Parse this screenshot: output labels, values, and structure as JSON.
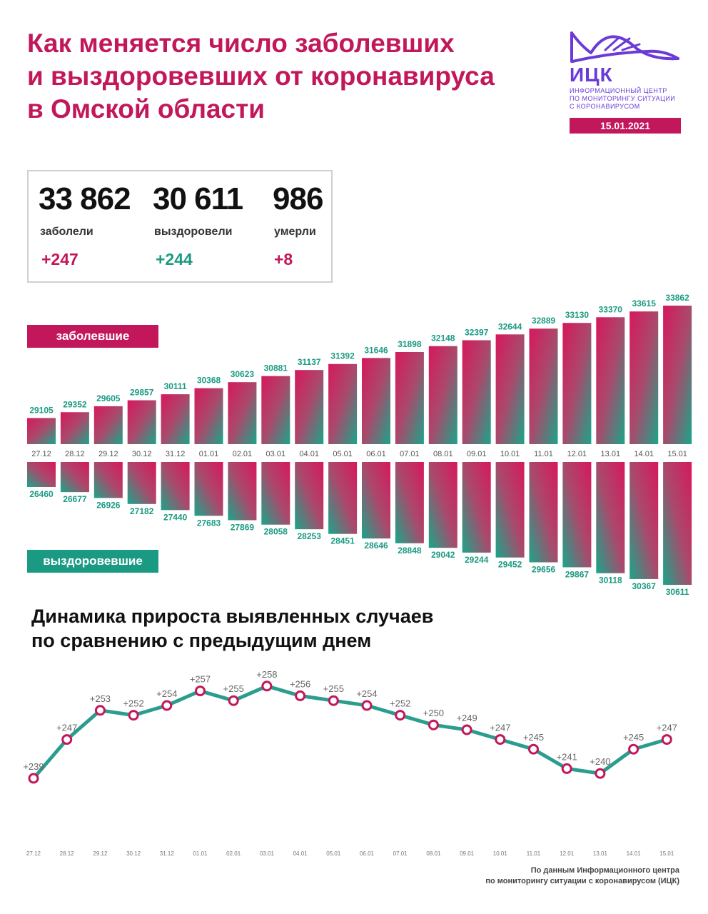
{
  "title_lines": [
    "Как меняется число заболевших",
    "и выздоровевших от коронавируса",
    "в Омской области"
  ],
  "logo": {
    "name": "ИЦК",
    "sub_lines": [
      "ИНФОРМАЦИОННЫЙ ЦЕНТР",
      "ПО МОНИТОРИНГУ СИТУАЦИИ",
      "С КОРОНАВИРУСОМ"
    ],
    "date": "15.01.2021",
    "color": "#6a3bd6"
  },
  "stats": [
    {
      "value": "33 862",
      "label": "заболели",
      "delta": "+247"
    },
    {
      "value": "30 611",
      "label": "выздоровели",
      "delta": "+244"
    },
    {
      "value": "986",
      "label": "умерли",
      "delta": "+8"
    }
  ],
  "banners": {
    "cases": "заболевшие",
    "recovered": "выздоровевшие"
  },
  "dynamics_title_lines": [
    "Динамика прироста выявленных случаев",
    "по сравнению с предыдущим днем"
  ],
  "source_lines": [
    "По данным Информационного центра",
    "по мониторингу ситуации с коронавирусом (ИЦК)"
  ],
  "colors": {
    "pink": "#c2185b",
    "green": "#1a9a82",
    "line": "#2a9d8f"
  },
  "chart_data": [
    {
      "type": "bar",
      "categories": [
        "27.12",
        "28.12",
        "29.12",
        "30.12",
        "31.12",
        "01.01",
        "02.01",
        "03.01",
        "04.01",
        "05.01",
        "06.01",
        "07.01",
        "08.01",
        "09.01",
        "10.01",
        "11.01",
        "12.01",
        "13.01",
        "14.01",
        "15.01"
      ],
      "series": [
        {
          "name": "заболевшие",
          "values": [
            29105,
            29352,
            29605,
            29857,
            30111,
            30368,
            30623,
            30881,
            31137,
            31392,
            31646,
            31898,
            32148,
            32397,
            32644,
            32889,
            33130,
            33370,
            33615,
            33862
          ]
        },
        {
          "name": "выздоровевшие",
          "values": [
            26460,
            26677,
            26926,
            27182,
            27440,
            27683,
            27869,
            28058,
            28253,
            28451,
            28646,
            28848,
            29042,
            29244,
            29452,
            29656,
            29867,
            30118,
            30367,
            30611
          ]
        }
      ]
    },
    {
      "type": "line",
      "categories": [
        "27.12",
        "28.12",
        "29.12",
        "30.12",
        "31.12",
        "01.01",
        "02.01",
        "03.01",
        "04.01",
        "05.01",
        "06.01",
        "07.01",
        "08.01",
        "09.01",
        "10.01",
        "11.01",
        "12.01",
        "13.01",
        "14.01",
        "15.01"
      ],
      "values": [
        239,
        247,
        253,
        252,
        254,
        257,
        255,
        258,
        256,
        255,
        254,
        252,
        250,
        249,
        247,
        245,
        241,
        240,
        245,
        247
      ],
      "labels": [
        "+239",
        "+247",
        "+253",
        "+252",
        "+254",
        "+257",
        "+255",
        "+258",
        "+256",
        "+255",
        "+254",
        "+252",
        "+250",
        "+249",
        "+247",
        "+245",
        "+241",
        "+240",
        "+245",
        "+247"
      ]
    }
  ]
}
